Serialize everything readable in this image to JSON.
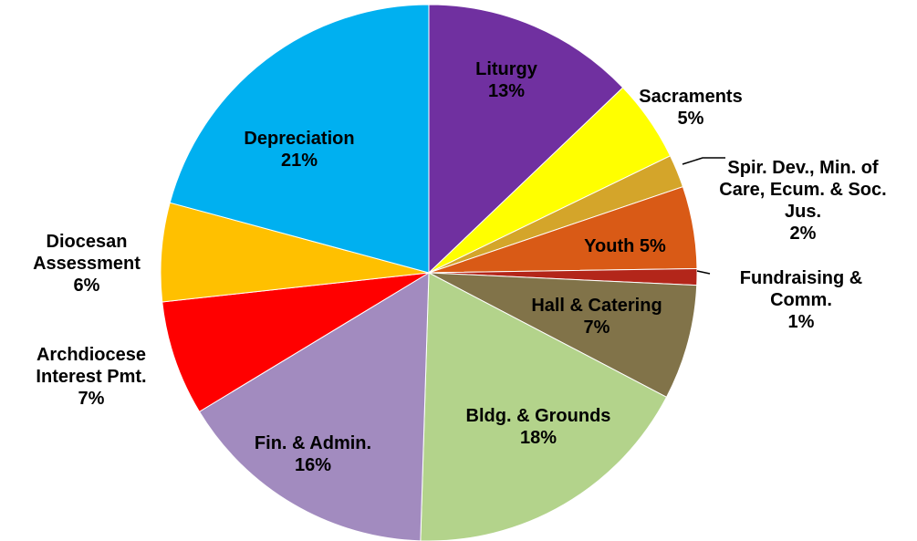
{
  "chart_data": {
    "type": "pie",
    "categories": [
      "Liturgy",
      "Sacraments",
      "Spir. Dev., Min. of Care, Ecum. & Soc. Jus.",
      "Youth",
      "Fundraising & Comm.",
      "Hall & Catering",
      "Bldg. & Grounds",
      "Fin. & Admin.",
      "Archdiocese Interest Pmt.",
      "Diocesan Assessment",
      "Depreciation"
    ],
    "values": [
      13,
      5,
      2,
      5,
      1,
      7,
      18,
      16,
      7,
      6,
      21
    ],
    "value_labels": [
      "13%",
      "5%",
      "2%",
      "5%",
      "1%",
      "7%",
      "18%",
      "16%",
      "7%",
      "6%",
      "21%"
    ],
    "colors": [
      "#7030a0",
      "#ffff00",
      "#d4a52a",
      "#d95a16",
      "#b3261a",
      "#817349",
      "#b3d38b",
      "#a28bbf",
      "#ff0000",
      "#ffc000",
      "#00b0f0"
    ]
  }
}
